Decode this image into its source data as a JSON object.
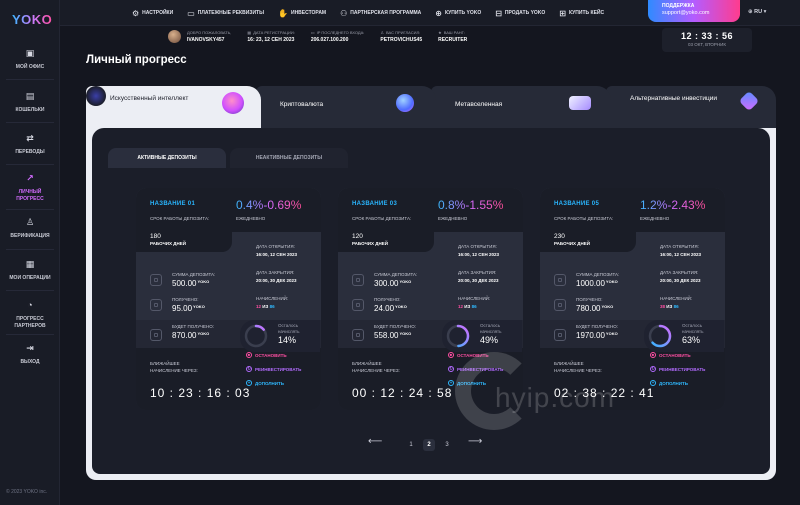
{
  "app": {
    "logo": "YOKO",
    "copyright": "© 2023 YOKO inc."
  },
  "sidebar": {
    "items": [
      {
        "label": "МОЙ ОФИС",
        "icon": "office-icon"
      },
      {
        "label": "КОШЕЛЬКИ",
        "icon": "wallet-icon"
      },
      {
        "label": "ПЕРЕВОДЫ",
        "icon": "transfer-icon"
      },
      {
        "label": "ЛИЧНЫЙ ПРОГРЕСС",
        "icon": "progress-icon",
        "active": true
      },
      {
        "label": "ВЕРИФИКАЦИЯ",
        "icon": "user-icon"
      },
      {
        "label": "МОИ ОПЕРАЦИИ",
        "icon": "calendar-icon"
      },
      {
        "label": "ПРОГРЕСС ПАРТНЕРОВ",
        "icon": "chart-icon"
      },
      {
        "label": "ВЫХОД",
        "icon": "logout-icon"
      }
    ]
  },
  "topmenu": {
    "items": [
      "НАСТРОЙКИ",
      "ПЛАТЕЖНЫЕ РЕКВИЗИТЫ",
      "ИНВЕСТОРАМ",
      "ПАРТНЕРСКАЯ ПРОГРАММА",
      "КУПИТЬ YOKO",
      "ПРОДАТЬ YOKO",
      "КУПИТЬ КЕЙС"
    ],
    "support_title": "ПОДДЕРЖКА",
    "support_email": "support@yoko.com",
    "lang": "RU"
  },
  "infobar": {
    "welcome_label": "ДОБРО ПОЖАЛОВАТЬ,",
    "welcome_value": "IVANOVSKY457",
    "reg_label": "ДАТА РЕГИСТРАЦИИ:",
    "reg_value": "16: 23, 12 СЕН 2023",
    "ip_label": "IP ПОСЛЕДНЕГО ВХОДА:",
    "ip_value": "206.027.100.200",
    "invited_label": "ВАС ПРИГЛАСИЛ:",
    "invited_value": "PETROVICHUS45",
    "rank_label": "ВАШ РАНГ:",
    "rank_value": "RECRUITER",
    "clock_time": "12 : 33 : 56",
    "clock_date": "03 ОКТ, ВТОРНИК"
  },
  "page": {
    "title": "Личный прогресс"
  },
  "categories": [
    {
      "label": "Искусственный интеллект",
      "color": "#ff4fa3"
    },
    {
      "label": "Криптовалюта",
      "color": "#4fa0ff"
    },
    {
      "label": "Метавселенная",
      "color": "#c77dff"
    },
    {
      "label": "Альтернативные инвестиции",
      "color": "#b45cff"
    }
  ],
  "subtabs": {
    "active": "АКТИВНЫЕ ДЕПОЗИТЫ",
    "inactive": "НЕАКТИВНЫЕ ДЕПОЗИТЫ"
  },
  "card_labels": {
    "term": "СРОК РАБОТЫ ДЕПОЗИТА:",
    "workdays": "РАБОЧИХ ДНЕЙ",
    "daily": "ЕЖЕДНЕВНО",
    "open_date": "ДАТА ОТКРЫТИЯ:",
    "close_date": "ДАТА ЗАКРЫТИЯ:",
    "sum": "СУММА ДЕПОЗИТА:",
    "received": "ПОЛУЧЕНО:",
    "accruals": "НАЧИСЛЕНИЙ:",
    "will_receive": "БУДЕТ ПОЛУЧЕНО:",
    "remaining": "Осталось начислять",
    "nearest": "БЛИЖАЙШЕЕ НАЧИСЛЕНИЕ ЧЕРЕЗ:",
    "stop": "ОСТАНОВИТЬ",
    "reinvest": "РЕИНВЕСТИРОВАТЬ",
    "topup": "ДОПОЛНИТЬ",
    "currency": "YOKO",
    "of": "ИЗ"
  },
  "deposits": [
    {
      "name": "НАЗВАНИЕ 01",
      "rate": "0.4%-0.69%",
      "days": "180",
      "open": "16:00, 12 СЕН 2023",
      "close": "20:00, 30 ДЕК 2023",
      "sum": "500.00",
      "received": "95.00",
      "acc_done": "12",
      "acc_total": "86",
      "will": "870.00",
      "percent": 14,
      "percent_label": "14%",
      "timer": "10 : 23 : 16 : 03"
    },
    {
      "name": "НАЗВАНИЕ 03",
      "rate": "0.8%-1.55%",
      "days": "120",
      "open": "16:00, 12 СЕН 2023",
      "close": "20:00, 30 ДЕК 2023",
      "sum": "300.00",
      "received": "24.00",
      "acc_done": "12",
      "acc_total": "86",
      "will": "558.00",
      "percent": 49,
      "percent_label": "49%",
      "timer": "00 : 12 : 24 : 58"
    },
    {
      "name": "НАЗВАНИЕ 05",
      "rate": "1.2%-2.43%",
      "days": "230",
      "open": "16:00, 12 СЕН 2023",
      "close": "20:00, 30 ДЕК 2023",
      "sum": "1000.00",
      "received": "780.00",
      "acc_done": "38",
      "acc_total": "86",
      "will": "1970.00",
      "percent": 63,
      "percent_label": "63%",
      "timer": "02 : 38 : 22 : 41"
    }
  ],
  "pagination": {
    "pages": [
      "1",
      "2",
      "3"
    ],
    "current": "2"
  },
  "watermark": "hyip.com",
  "colors": {
    "accent_pink": "#ff4fa3",
    "accent_blue": "#2fb9ff",
    "accent_purple": "#b26bff"
  }
}
